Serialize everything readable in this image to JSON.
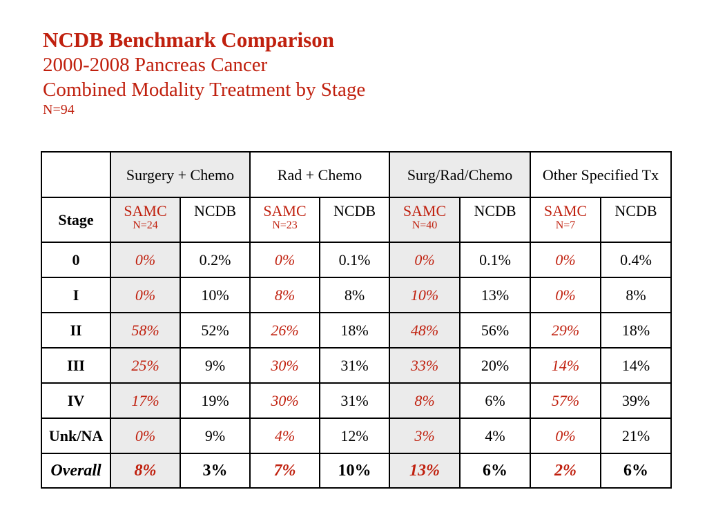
{
  "title": {
    "line1": "NCDB Benchmark Comparison",
    "line2": "2000-2008 Pancreas Cancer",
    "line3": "Combined Modality Treatment by Stage",
    "line4": "N=94"
  },
  "table": {
    "groups": [
      "Surgery + Chemo",
      "Rad + Chemo",
      "Surg/Rad/Chemo",
      "Other Specified Tx"
    ],
    "stage_header": "Stage",
    "subheaders": [
      {
        "samc": "SAMC",
        "n": "N=24",
        "ncdb": "NCDB"
      },
      {
        "samc": "SAMC",
        "n": "N=23",
        "ncdb": "NCDB"
      },
      {
        "samc": "SAMC",
        "n": "N=40",
        "ncdb": "NCDB"
      },
      {
        "samc": "SAMC",
        "n": "N=7",
        "ncdb": "NCDB"
      }
    ],
    "rows": [
      {
        "stage": "0",
        "values": [
          "0%",
          "0.2%",
          "0%",
          "0.1%",
          "0%",
          "0.1%",
          "0%",
          "0.4%"
        ]
      },
      {
        "stage": "I",
        "values": [
          "0%",
          "10%",
          "8%",
          "8%",
          "10%",
          "13%",
          "0%",
          "8%"
        ]
      },
      {
        "stage": "II",
        "values": [
          "58%",
          "52%",
          "26%",
          "18%",
          "48%",
          "56%",
          "29%",
          "18%"
        ]
      },
      {
        "stage": "III",
        "values": [
          "25%",
          "9%",
          "30%",
          "31%",
          "33%",
          "20%",
          "14%",
          "14%"
        ]
      },
      {
        "stage": "IV",
        "values": [
          "17%",
          "19%",
          "30%",
          "31%",
          "8%",
          "6%",
          "57%",
          "39%"
        ]
      },
      {
        "stage": "Unk/NA",
        "values": [
          "0%",
          "9%",
          "4%",
          "12%",
          "3%",
          "4%",
          "0%",
          "21%"
        ]
      }
    ],
    "overall": {
      "label": "Overall",
      "values": [
        "8%",
        "3%",
        "7%",
        "10%",
        "13%",
        "6%",
        "2%",
        "6%"
      ]
    }
  },
  "colors": {
    "accent_red": "#c0200e",
    "shade_gray": "#ebebeb"
  }
}
